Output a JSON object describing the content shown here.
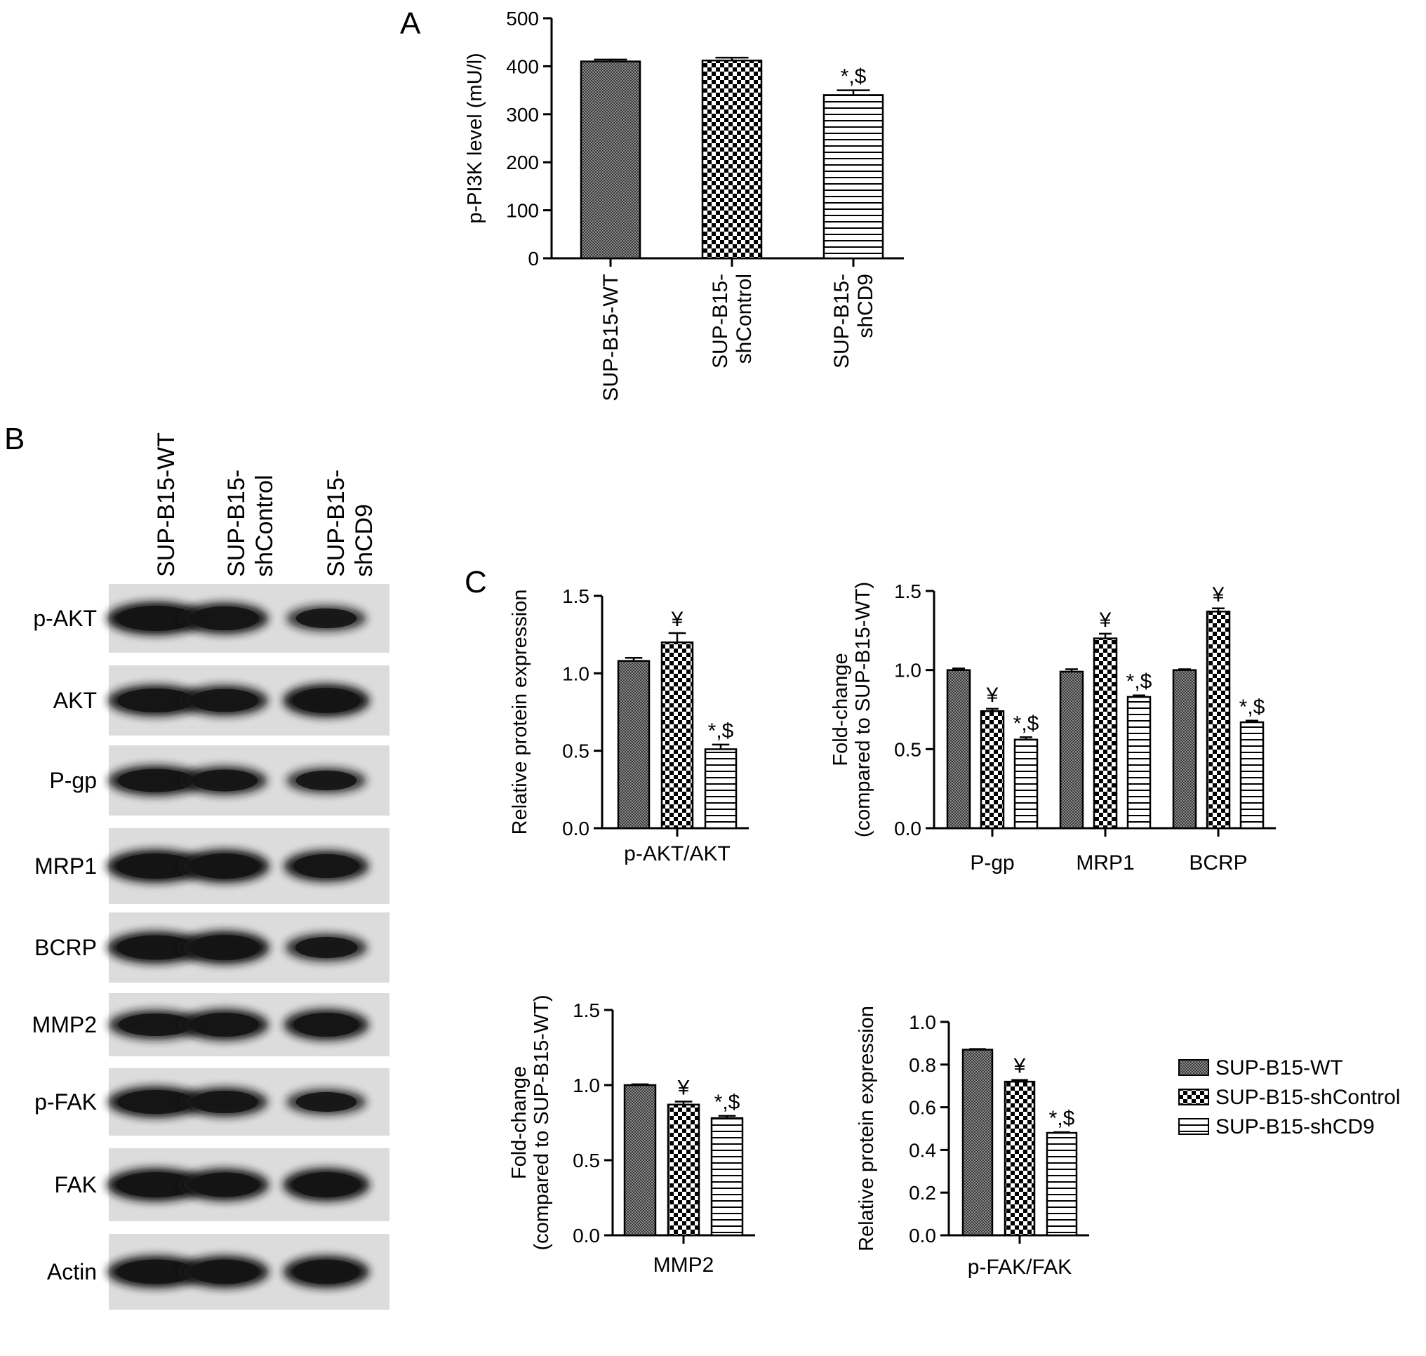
{
  "panels": {
    "A": {
      "letter": "A"
    },
    "B": {
      "letter": "B"
    },
    "C": {
      "letter": "C"
    }
  },
  "colors": {
    "ink": "#000000",
    "blot_background": "#dcdcdc",
    "band": "#141414",
    "paper": "#ffffff"
  },
  "groups": [
    "SUP-B15-WT",
    "SUP-B15-shControl",
    "SUP-B15-shCD9"
  ],
  "patterns": [
    "fine-checker-pattern",
    "coarse-checker-pattern",
    "horizontal-stripes-pattern"
  ],
  "blot": {
    "lane_labels": [
      [
        "SUP-B15-WT"
      ],
      [
        "SUP-B15-",
        "shControl"
      ],
      [
        "SUP-B15-",
        "shCD9"
      ]
    ],
    "rows": [
      {
        "label": "p-AKT",
        "band_intensity": [
          1.0,
          0.9,
          0.6
        ]
      },
      {
        "label": "AKT",
        "band_intensity": [
          0.9,
          0.85,
          1.0
        ]
      },
      {
        "label": "P-gp",
        "band_intensity": [
          0.85,
          0.75,
          0.6
        ]
      },
      {
        "label": "MRP1",
        "band_intensity": [
          1.0,
          1.0,
          0.9
        ]
      },
      {
        "label": "BCRP",
        "band_intensity": [
          0.95,
          1.0,
          0.7
        ]
      },
      {
        "label": "MMP2",
        "band_intensity": [
          0.8,
          0.9,
          0.9
        ]
      },
      {
        "label": "p-FAK",
        "band_intensity": [
          0.9,
          0.8,
          0.6
        ]
      },
      {
        "label": "FAK",
        "band_intensity": [
          1.0,
          0.95,
          1.0
        ]
      },
      {
        "label": "Actin",
        "band_intensity": [
          0.95,
          0.95,
          0.95
        ]
      }
    ]
  },
  "legend": {
    "entries": [
      "SUP-B15-WT",
      "SUP-B15-shControl",
      "SUP-B15-shCD9"
    ],
    "placement": "right"
  },
  "chart_data": [
    {
      "id": "A",
      "type": "bar",
      "ylabel": [
        "p-PI3K level (mU/l)"
      ],
      "ylim": [
        0,
        500
      ],
      "yticks": [
        "0",
        "100",
        "200",
        "300",
        "400",
        "500"
      ],
      "x_tick_labels_rotated": [
        [
          "SUP-B15-WT"
        ],
        [
          "SUP-B15-",
          "shControl"
        ],
        [
          "SUP-B15-",
          "shCD9"
        ]
      ],
      "categories": [
        ""
      ],
      "series": [
        {
          "name": "SUP-B15-WT",
          "values": [
            410
          ],
          "errors": [
            4
          ],
          "annotations": [
            ""
          ]
        },
        {
          "name": "SUP-B15-shControl",
          "values": [
            412
          ],
          "errors": [
            6
          ],
          "annotations": [
            ""
          ]
        },
        {
          "name": "SUP-B15-shCD9",
          "values": [
            340
          ],
          "errors": [
            10
          ],
          "annotations": [
            "*,$"
          ]
        }
      ]
    },
    {
      "id": "C1",
      "type": "bar",
      "ylabel": [
        "Relative protein expression"
      ],
      "ylim": [
        0,
        1.5
      ],
      "yticks": [
        "0.0",
        "0.5",
        "1.0",
        "1.5"
      ],
      "categories": [
        "p-AKT/AKT"
      ],
      "series": [
        {
          "name": "SUP-B15-WT",
          "values": [
            1.08
          ],
          "errors": [
            0.02
          ],
          "annotations": [
            ""
          ]
        },
        {
          "name": "SUP-B15-shControl",
          "values": [
            1.2
          ],
          "errors": [
            0.06
          ],
          "annotations": [
            "¥"
          ]
        },
        {
          "name": "SUP-B15-shCD9",
          "values": [
            0.51
          ],
          "errors": [
            0.03
          ],
          "annotations": [
            "*,$"
          ]
        }
      ]
    },
    {
      "id": "C2",
      "type": "bar",
      "ylabel": [
        "Fold-change",
        "(compared to SUP-B15-WT)"
      ],
      "ylim": [
        0,
        1.5
      ],
      "yticks": [
        "0.0",
        "0.5",
        "1.0",
        "1.5"
      ],
      "categories": [
        "P-gp",
        "MRP1",
        "BCRP"
      ],
      "series": [
        {
          "name": "SUP-B15-WT",
          "values": [
            1.0,
            0.99,
            1.0
          ],
          "errors": [
            0.01,
            0.015,
            0.005
          ],
          "annotations": [
            "",
            "",
            ""
          ]
        },
        {
          "name": "SUP-B15-shControl",
          "values": [
            0.74,
            1.2,
            1.37
          ],
          "errors": [
            0.015,
            0.03,
            0.02
          ],
          "annotations": [
            "¥",
            "¥",
            "¥"
          ]
        },
        {
          "name": "SUP-B15-shCD9",
          "values": [
            0.56,
            0.83,
            0.67
          ],
          "errors": [
            0.015,
            0.01,
            0.01
          ],
          "annotations": [
            "*,$",
            "*,$",
            "*,$"
          ]
        }
      ]
    },
    {
      "id": "C3",
      "type": "bar",
      "ylabel": [
        "Fold-change",
        "(compared to SUP-B15-WT)"
      ],
      "ylim": [
        0,
        1.5
      ],
      "yticks": [
        "0.0",
        "0.5",
        "1.0",
        "1.5"
      ],
      "categories": [
        "MMP2"
      ],
      "series": [
        {
          "name": "SUP-B15-WT",
          "values": [
            1.0
          ],
          "errors": [
            0.005
          ],
          "annotations": [
            ""
          ]
        },
        {
          "name": "SUP-B15-shControl",
          "values": [
            0.87
          ],
          "errors": [
            0.02
          ],
          "annotations": [
            "¥"
          ]
        },
        {
          "name": "SUP-B15-shCD9",
          "values": [
            0.78
          ],
          "errors": [
            0.015
          ],
          "annotations": [
            "*,$"
          ]
        }
      ]
    },
    {
      "id": "C4",
      "type": "bar",
      "ylabel": [
        "Relative protein expression"
      ],
      "ylim": [
        0,
        1.0
      ],
      "yticks": [
        "0.0",
        "0.2",
        "0.4",
        "0.6",
        "0.8",
        "1.0"
      ],
      "categories": [
        "p-FAK/FAK"
      ],
      "series": [
        {
          "name": "SUP-B15-WT",
          "values": [
            0.87
          ],
          "errors": [
            0.003
          ],
          "annotations": [
            ""
          ]
        },
        {
          "name": "SUP-B15-shControl",
          "values": [
            0.72
          ],
          "errors": [
            0.008
          ],
          "annotations": [
            "¥"
          ]
        },
        {
          "name": "SUP-B15-shCD9",
          "values": [
            0.48
          ],
          "errors": [
            0.003
          ],
          "annotations": [
            "*,$"
          ]
        }
      ]
    }
  ]
}
